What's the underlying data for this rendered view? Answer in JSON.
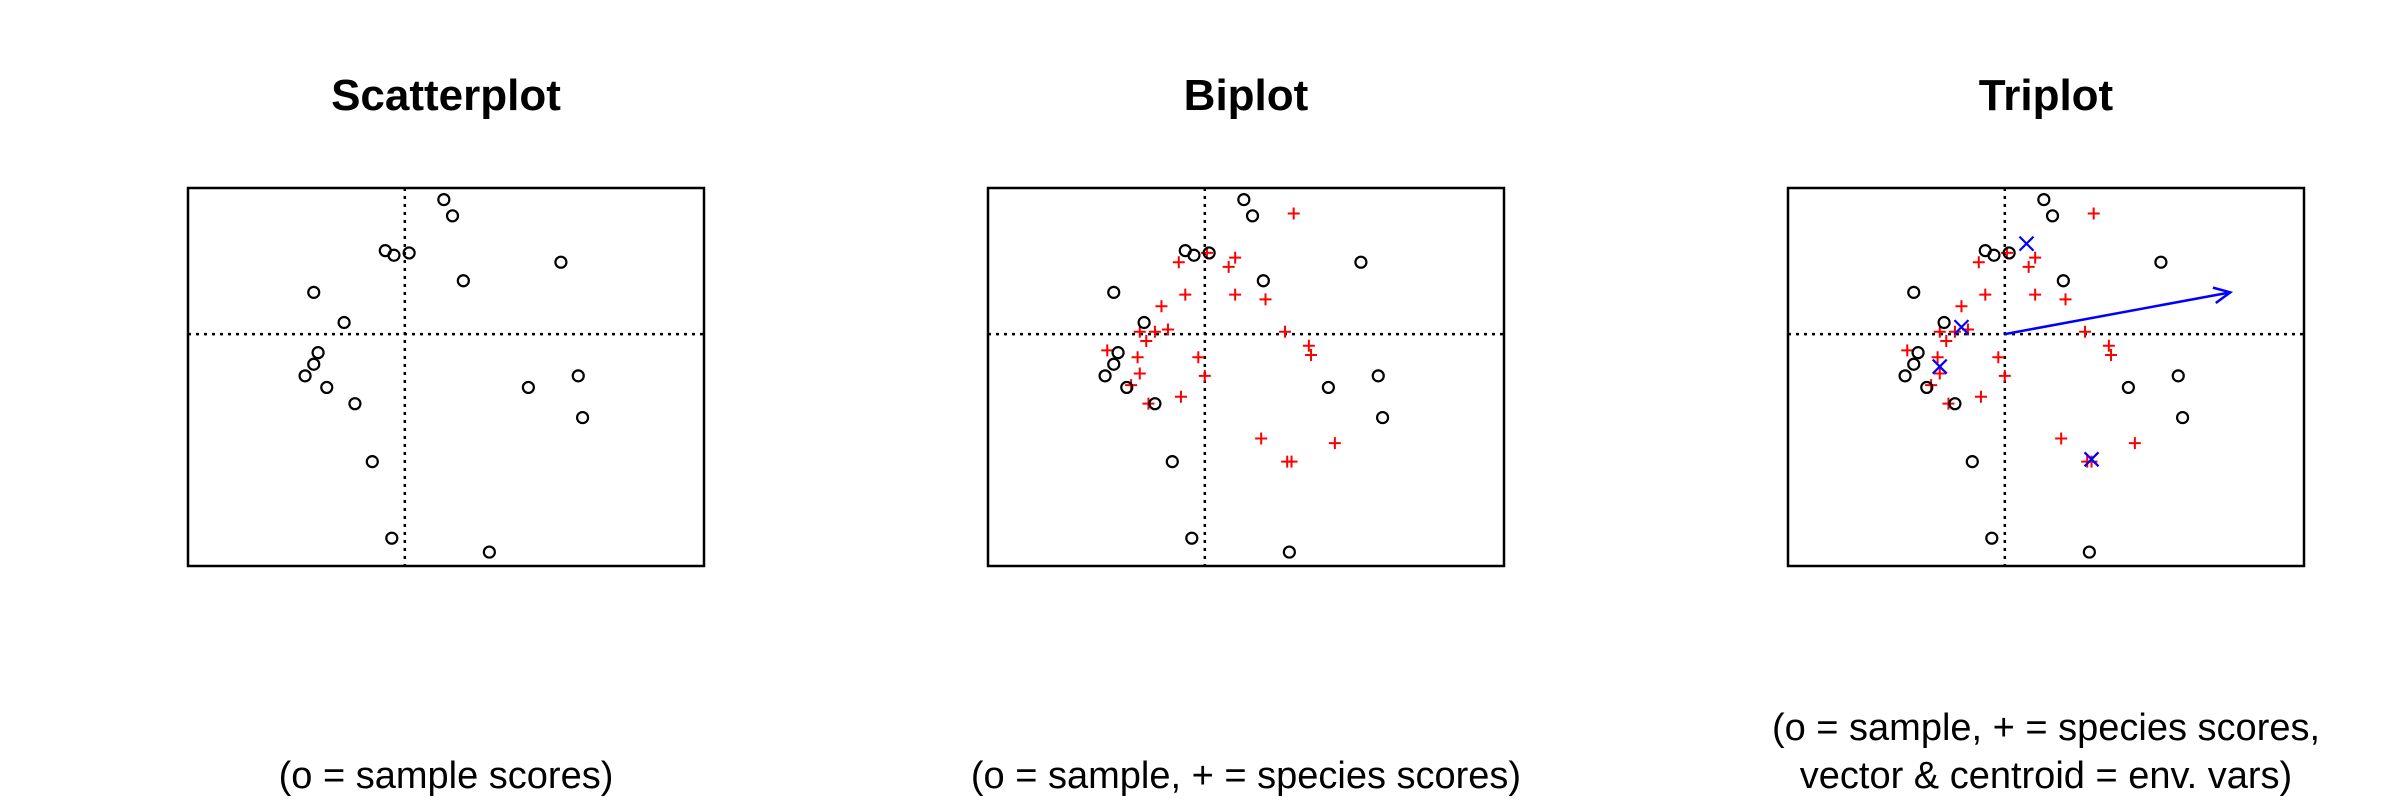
{
  "colors": {
    "samples": "#000000",
    "species": "#ff0000",
    "env": "#0000ff",
    "axes": "#000000"
  },
  "chart_data": [
    {
      "type": "scatter",
      "title": "Scatterplot",
      "caption": [
        "(o = sample scores)"
      ],
      "xlim": [
        -1.0,
        1.38
      ],
      "ylim": [
        -1.0,
        0.63
      ],
      "reference_lines": {
        "x": 0,
        "y": 0,
        "style": "dotted"
      },
      "axes_ticks": false,
      "samples": [
        [
          0.18,
          0.58
        ],
        [
          0.22,
          0.51
        ],
        [
          -0.09,
          0.36
        ],
        [
          -0.05,
          0.34
        ],
        [
          0.02,
          0.35
        ],
        [
          0.27,
          0.23
        ],
        [
          0.72,
          0.31
        ],
        [
          -0.42,
          0.18
        ],
        [
          -0.28,
          0.05
        ],
        [
          -0.4,
          -0.08
        ],
        [
          -0.42,
          -0.13
        ],
        [
          -0.46,
          -0.18
        ],
        [
          -0.36,
          -0.23
        ],
        [
          -0.23,
          -0.3
        ],
        [
          0.57,
          -0.23
        ],
        [
          0.8,
          -0.18
        ],
        [
          0.82,
          -0.36
        ],
        [
          -0.15,
          -0.55
        ],
        [
          -0.06,
          -0.88
        ],
        [
          0.39,
          -0.94
        ]
      ]
    },
    {
      "type": "scatter",
      "title": "Biplot",
      "caption": [
        "(o = sample, + = species scores)"
      ],
      "xlim": [
        -1.0,
        1.38
      ],
      "ylim": [
        -1.0,
        0.63
      ],
      "reference_lines": {
        "x": 0,
        "y": 0,
        "style": "dotted"
      },
      "axes_ticks": false,
      "samples": [
        [
          0.18,
          0.58
        ],
        [
          0.22,
          0.51
        ],
        [
          -0.09,
          0.36
        ],
        [
          -0.05,
          0.34
        ],
        [
          0.02,
          0.35
        ],
        [
          0.27,
          0.23
        ],
        [
          0.72,
          0.31
        ],
        [
          -0.42,
          0.18
        ],
        [
          -0.28,
          0.05
        ],
        [
          -0.4,
          -0.08
        ],
        [
          -0.42,
          -0.13
        ],
        [
          -0.46,
          -0.18
        ],
        [
          -0.36,
          -0.23
        ],
        [
          -0.23,
          -0.3
        ],
        [
          0.57,
          -0.23
        ],
        [
          0.8,
          -0.18
        ],
        [
          0.82,
          -0.36
        ],
        [
          -0.15,
          -0.55
        ],
        [
          -0.06,
          -0.88
        ],
        [
          0.39,
          -0.94
        ]
      ],
      "species": [
        [
          0.41,
          0.52
        ],
        [
          0.14,
          0.33
        ],
        [
          0.11,
          0.29
        ],
        [
          -0.12,
          0.31
        ],
        [
          0.01,
          0.35
        ],
        [
          -0.09,
          0.17
        ],
        [
          0.14,
          0.17
        ],
        [
          0.28,
          0.15
        ],
        [
          -0.2,
          0.12
        ],
        [
          -0.17,
          0.02
        ],
        [
          -0.3,
          0.01
        ],
        [
          -0.23,
          0.01
        ],
        [
          -0.27,
          -0.03
        ],
        [
          -0.45,
          -0.07
        ],
        [
          -0.31,
          -0.1
        ],
        [
          -0.03,
          -0.1
        ],
        [
          0.0,
          -0.18
        ],
        [
          -0.3,
          -0.17
        ],
        [
          -0.34,
          -0.22
        ],
        [
          -0.11,
          -0.27
        ],
        [
          -0.26,
          -0.3
        ],
        [
          0.37,
          0.01
        ],
        [
          0.48,
          -0.05
        ],
        [
          0.49,
          -0.09
        ],
        [
          0.26,
          -0.45
        ],
        [
          0.38,
          -0.55
        ],
        [
          0.4,
          -0.55
        ],
        [
          0.6,
          -0.47
        ]
      ]
    },
    {
      "type": "scatter",
      "title": "Triplot",
      "caption": [
        "(o = sample, + = species scores,",
        "vector & centroid = env. vars)"
      ],
      "xlim": [
        -1.0,
        1.38
      ],
      "ylim": [
        -1.0,
        0.63
      ],
      "reference_lines": {
        "x": 0,
        "y": 0,
        "style": "dotted"
      },
      "axes_ticks": false,
      "samples": [
        [
          0.18,
          0.58
        ],
        [
          0.22,
          0.51
        ],
        [
          -0.09,
          0.36
        ],
        [
          -0.05,
          0.34
        ],
        [
          0.02,
          0.35
        ],
        [
          0.27,
          0.23
        ],
        [
          0.72,
          0.31
        ],
        [
          -0.42,
          0.18
        ],
        [
          -0.28,
          0.05
        ],
        [
          -0.4,
          -0.08
        ],
        [
          -0.42,
          -0.13
        ],
        [
          -0.46,
          -0.18
        ],
        [
          -0.36,
          -0.23
        ],
        [
          -0.23,
          -0.3
        ],
        [
          0.57,
          -0.23
        ],
        [
          0.8,
          -0.18
        ],
        [
          0.82,
          -0.36
        ],
        [
          -0.15,
          -0.55
        ],
        [
          -0.06,
          -0.88
        ],
        [
          0.39,
          -0.94
        ]
      ],
      "species": [
        [
          0.41,
          0.52
        ],
        [
          0.14,
          0.33
        ],
        [
          0.11,
          0.29
        ],
        [
          -0.12,
          0.31
        ],
        [
          0.01,
          0.35
        ],
        [
          -0.09,
          0.17
        ],
        [
          0.14,
          0.17
        ],
        [
          0.28,
          0.15
        ],
        [
          -0.2,
          0.12
        ],
        [
          -0.17,
          0.02
        ],
        [
          -0.3,
          0.01
        ],
        [
          -0.23,
          0.01
        ],
        [
          -0.27,
          -0.03
        ],
        [
          -0.45,
          -0.07
        ],
        [
          -0.31,
          -0.1
        ],
        [
          -0.03,
          -0.1
        ],
        [
          0.0,
          -0.18
        ],
        [
          -0.3,
          -0.17
        ],
        [
          -0.34,
          -0.22
        ],
        [
          -0.11,
          -0.27
        ],
        [
          -0.26,
          -0.3
        ],
        [
          0.37,
          0.01
        ],
        [
          0.48,
          -0.05
        ],
        [
          0.49,
          -0.09
        ],
        [
          0.26,
          -0.45
        ],
        [
          0.38,
          -0.55
        ],
        [
          0.4,
          -0.55
        ],
        [
          0.6,
          -0.47
        ]
      ],
      "centroids": [
        [
          0.1,
          0.39
        ],
        [
          -0.2,
          0.03
        ],
        [
          -0.3,
          -0.14
        ],
        [
          0.4,
          -0.54
        ]
      ],
      "vectors": [
        {
          "from": [
            0,
            0
          ],
          "to": [
            1.04,
            0.18
          ]
        }
      ]
    }
  ]
}
